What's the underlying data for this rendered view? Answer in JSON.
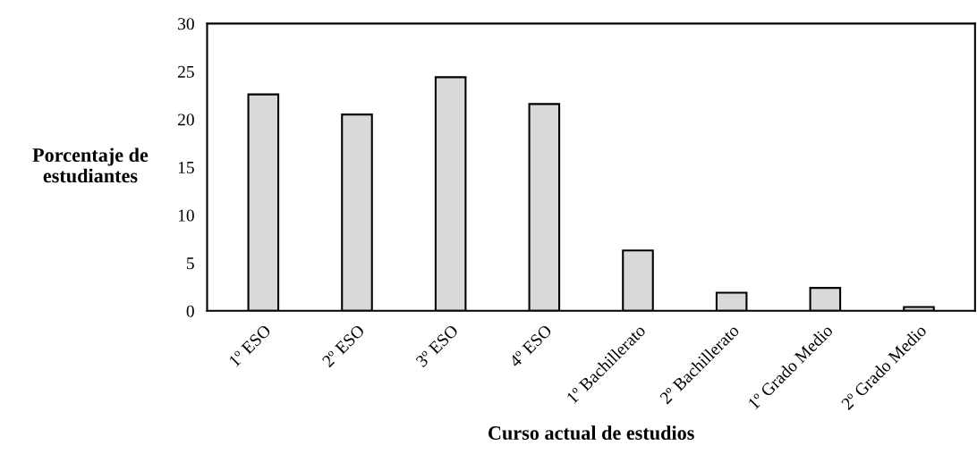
{
  "chart_data": {
    "type": "bar",
    "xlabel": "Curso actual de estudios",
    "ylabel": "Porcentaje de\nestudiantes",
    "categories": [
      "1º ESO",
      "2º ESO",
      "3º ESO",
      "4º ESO",
      "1º Bachillerato",
      "2º Bachillerato",
      "1º Grado Medio",
      "2º Grado Medio"
    ],
    "values": [
      22.6,
      20.5,
      24.4,
      21.6,
      6.3,
      1.9,
      2.4,
      0.4
    ],
    "color": "#d9d9d9",
    "ylim": [
      0,
      30
    ],
    "yticks": [
      0,
      5,
      10,
      15,
      20,
      25,
      30
    ],
    "grid": false
  }
}
